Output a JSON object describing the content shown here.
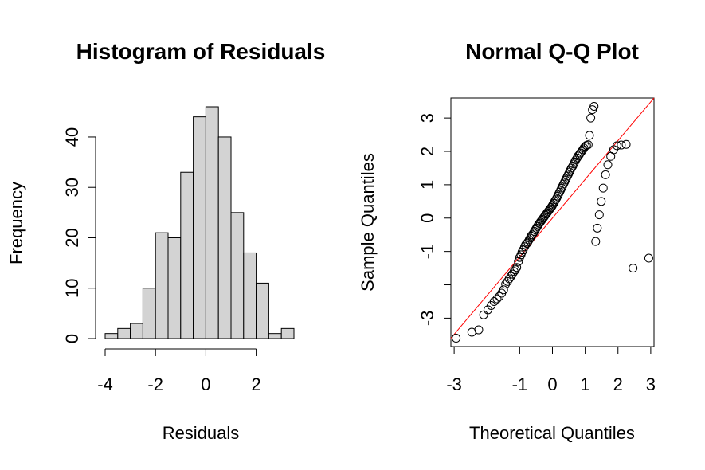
{
  "chart_data": [
    {
      "type": "bar",
      "title": "Histogram of Residuals",
      "xlabel": "Residuals",
      "ylabel": "Frequency",
      "bin_edges": [
        -4.0,
        -3.5,
        -3.0,
        -2.5,
        -2.0,
        -1.5,
        -1.0,
        -0.5,
        0.0,
        0.5,
        1.0,
        1.5,
        2.0,
        2.5,
        3.0,
        3.5
      ],
      "values": [
        1,
        2,
        3,
        10,
        21,
        20,
        33,
        44,
        46,
        40,
        25,
        17,
        11,
        1,
        2
      ],
      "xlim": [
        -4,
        3.5
      ],
      "ylim": [
        0,
        46
      ],
      "xticks": [
        -4,
        -2,
        0,
        2
      ],
      "xtick_labels": [
        "-4",
        "-2",
        "0",
        "2"
      ],
      "yticks": [
        0,
        10,
        20,
        30,
        40
      ],
      "ytick_labels": [
        "0",
        "10",
        "20",
        "30",
        "40"
      ],
      "bar_color": "#d3d3d3",
      "grid": false
    },
    {
      "type": "scatter",
      "title": "Normal Q-Q Plot",
      "xlabel": "Theoretical Quantiles",
      "ylabel": "Sample Quantiles",
      "xlim": [
        -3.1,
        3.1
      ],
      "ylim": [
        -3.85,
        3.6
      ],
      "xticks": [
        -3,
        -1,
        0,
        1,
        2,
        3
      ],
      "xtick_labels": [
        "-3",
        "-1",
        "0",
        "1",
        "2",
        "3"
      ],
      "yticks": [
        -3,
        -2,
        -1,
        0,
        1,
        2,
        3
      ],
      "ytick_labels": [
        "-3",
        "",
        "-1",
        "0",
        "1",
        "2",
        "3"
      ],
      "reference_line": {
        "x": [
          -3.1,
          3.1
        ],
        "y": [
          -3.6,
          3.6
        ],
        "color": "#ff0000"
      },
      "point_style": "open-circle",
      "grid": false,
      "x": [
        -2.94,
        -2.46,
        -2.25,
        -2.1,
        -1.97,
        -1.87,
        -1.78,
        -1.69,
        -1.62,
        -1.55,
        -1.49,
        -1.43,
        -1.37,
        -1.32,
        -1.27,
        -1.22,
        -1.17,
        -1.13,
        -1.09,
        -1.04,
        -1.0,
        -0.96,
        -0.93,
        -0.89,
        -0.85,
        -0.82,
        -0.78,
        -0.75,
        -0.71,
        -0.68,
        -0.65,
        -0.62,
        -0.58,
        -0.55,
        -0.52,
        -0.49,
        -0.46,
        -0.43,
        -0.4,
        -0.37,
        -0.34,
        -0.31,
        -0.28,
        -0.25,
        -0.22,
        -0.19,
        -0.16,
        -0.13,
        -0.1,
        -0.07,
        -0.04,
        -0.01,
        0.01,
        0.04,
        0.07,
        0.1,
        0.13,
        0.16,
        0.19,
        0.22,
        0.25,
        0.28,
        0.31,
        0.34,
        0.37,
        0.4,
        0.43,
        0.46,
        0.49,
        0.52,
        0.55,
        0.58,
        0.62,
        0.65,
        0.68,
        0.71,
        0.75,
        0.78,
        0.82,
        0.85,
        0.89,
        0.93,
        0.96,
        1.0,
        1.04,
        1.09,
        1.13,
        1.17,
        1.22,
        1.27,
        1.32,
        1.37,
        1.43,
        1.49,
        1.55,
        1.62,
        1.69,
        1.78,
        1.87,
        1.97,
        2.1,
        2.25,
        2.46,
        2.94
      ],
      "y": [
        -3.6,
        -3.42,
        -3.35,
        -2.9,
        -2.75,
        -2.62,
        -2.5,
        -2.42,
        -2.35,
        -2.25,
        -2.15,
        -1.98,
        -1.9,
        -1.82,
        -1.75,
        -1.68,
        -1.6,
        -1.55,
        -1.48,
        -1.3,
        -1.18,
        -1.1,
        -1.02,
        -0.95,
        -0.86,
        -0.8,
        -0.76,
        -0.72,
        -0.65,
        -0.6,
        -0.54,
        -0.5,
        -0.45,
        -0.4,
        -0.35,
        -0.3,
        -0.25,
        -0.2,
        -0.16,
        -0.12,
        -0.08,
        -0.04,
        0.0,
        0.04,
        0.08,
        0.12,
        0.16,
        0.2,
        0.24,
        0.28,
        0.32,
        0.36,
        0.4,
        0.44,
        0.5,
        0.55,
        0.6,
        0.66,
        0.72,
        0.78,
        0.84,
        0.9,
        0.96,
        1.02,
        1.08,
        1.14,
        1.2,
        1.26,
        1.32,
        1.38,
        1.44,
        1.5,
        1.56,
        1.62,
        1.68,
        1.74,
        1.8,
        1.86,
        1.9,
        1.95,
        2.0,
        2.05,
        2.1,
        2.15,
        2.18,
        2.2,
        2.48,
        3.0,
        3.25,
        3.35,
        -0.7,
        -0.3,
        0.1,
        0.5,
        0.9,
        1.3,
        1.6,
        1.85,
        2.05,
        2.17,
        2.19,
        2.21,
        -1.5,
        -1.2
      ]
    }
  ]
}
